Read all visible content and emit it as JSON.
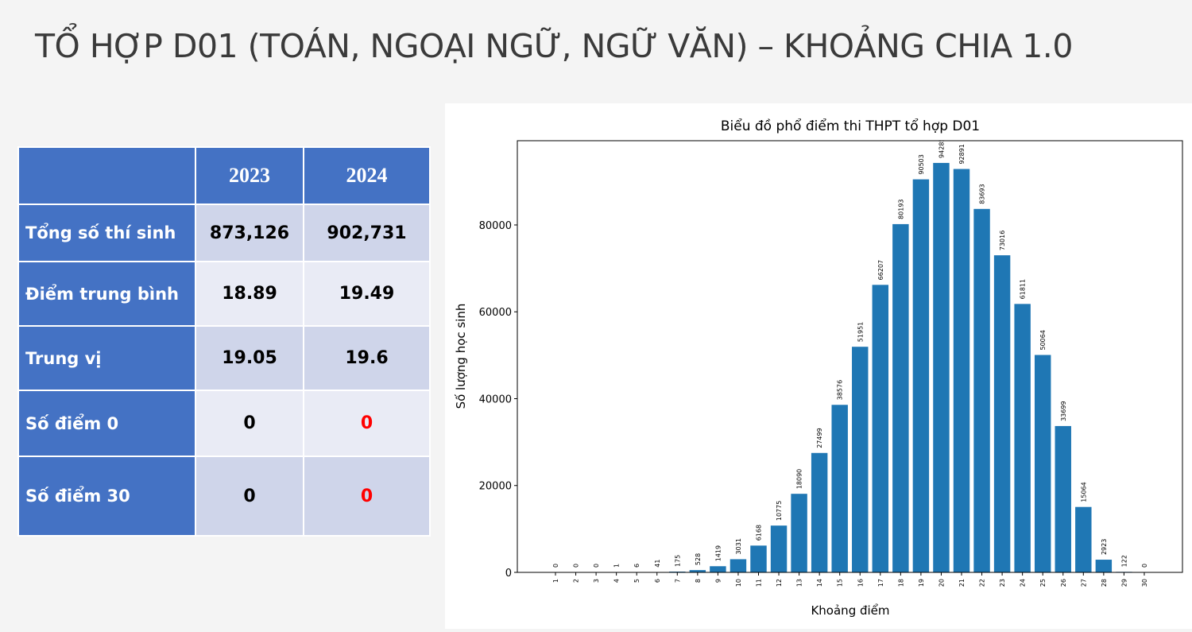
{
  "slide": {
    "title": "TỔ HỢP D01 (TOÁN, NGOẠI NGỮ, NGỮ VĂN) – KHOẢNG CHIA 1.0"
  },
  "table": {
    "headers": [
      "",
      "2023",
      "2024"
    ],
    "rows": [
      {
        "label": "Tổng số thí sinh",
        "v2023": "873,126",
        "v2024": "902,731"
      },
      {
        "label": "Điểm trung bình",
        "v2023": "18.89",
        "v2024": "19.49"
      },
      {
        "label": "Trung vị",
        "v2023": "19.05",
        "v2024": "19.6"
      },
      {
        "label": "Số điểm 0",
        "v2023": "0",
        "v2024": "0"
      },
      {
        "label": "Số điểm 30",
        "v2023": "0",
        "v2024": "0"
      }
    ],
    "highlight_color": "#ff0000"
  },
  "chart_data": {
    "type": "bar",
    "title": "Biểu đồ phổ điểm thi THPT tổ hợp D01",
    "xlabel": "Khoảng điểm",
    "ylabel": "Số lượng học sinh",
    "categories": [
      "1",
      "2",
      "3",
      "4",
      "5",
      "6",
      "7",
      "8",
      "9",
      "10",
      "11",
      "12",
      "13",
      "14",
      "15",
      "16",
      "17",
      "18",
      "19",
      "20",
      "21",
      "22",
      "23",
      "24",
      "25",
      "26",
      "27",
      "28",
      "29",
      "30"
    ],
    "values": [
      0,
      0,
      0,
      1,
      6,
      41,
      175,
      528,
      1419,
      3031,
      6168,
      10775,
      18090,
      27499,
      38576,
      51951,
      66207,
      80193,
      90503,
      94285,
      92891,
      83693,
      73016,
      61811,
      50064,
      33699,
      15064,
      2923,
      122,
      0
    ],
    "yticks": [
      0,
      20000,
      40000,
      60000,
      80000
    ],
    "ylim": [
      0,
      99400
    ],
    "bar_color": "#1f77b4",
    "grid": false
  }
}
